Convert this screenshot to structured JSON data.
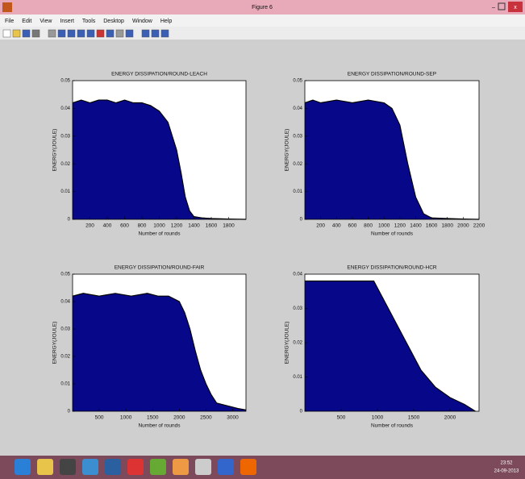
{
  "window": {
    "title": "Figure 6",
    "menu": [
      "File",
      "Edit",
      "View",
      "Insert",
      "Tools",
      "Desktop",
      "Window",
      "Help"
    ]
  },
  "taskbar": {
    "time": "23:52",
    "date": "24-09-2013"
  },
  "chart_data": [
    {
      "type": "area",
      "title": "ENERGY DISSIPATION/ROUND-LEACH",
      "xlabel": "Number of rounds",
      "ylabel": "ENERGY(JOULE)",
      "color": "#07078a",
      "x": [
        0,
        100,
        200,
        300,
        400,
        500,
        600,
        700,
        800,
        900,
        1000,
        1100,
        1200,
        1250,
        1300,
        1350,
        1400,
        1500,
        1600,
        1800,
        2000
      ],
      "values": [
        0.042,
        0.043,
        0.042,
        0.043,
        0.043,
        0.042,
        0.043,
        0.042,
        0.042,
        0.041,
        0.039,
        0.035,
        0.025,
        0.017,
        0.008,
        0.003,
        0.001,
        0.0005,
        0.0003,
        0.0001,
        0
      ],
      "xlim": [
        0,
        2000
      ],
      "ylim": [
        0,
        0.05
      ],
      "xticks": [
        200,
        400,
        600,
        800,
        1000,
        1200,
        1400,
        1600,
        1800
      ],
      "yticks": [
        0,
        0.01,
        0.02,
        0.03,
        0.04,
        0.05
      ]
    },
    {
      "type": "area",
      "title": "ENERGY DISSIPATION/ROUND-SEP",
      "xlabel": "Number of rounds",
      "ylabel": "ENERGY(JOULE)",
      "color": "#07078a",
      "x": [
        0,
        100,
        200,
        400,
        600,
        800,
        1000,
        1100,
        1200,
        1300,
        1400,
        1500,
        1600,
        1800,
        2000,
        2200
      ],
      "values": [
        0.042,
        0.043,
        0.042,
        0.043,
        0.042,
        0.043,
        0.042,
        0.04,
        0.034,
        0.02,
        0.008,
        0.002,
        0.0005,
        0.0003,
        0.0001,
        0
      ],
      "xlim": [
        0,
        2200
      ],
      "ylim": [
        0,
        0.05
      ],
      "xticks": [
        200,
        400,
        600,
        800,
        1000,
        1200,
        1400,
        1600,
        1800,
        2000,
        2200
      ],
      "yticks": [
        0,
        0.01,
        0.02,
        0.03,
        0.04,
        0.05
      ]
    },
    {
      "type": "area",
      "title": "ENERGY DISSIPATION/ROUND-FAIR",
      "xlabel": "Number of rounds",
      "ylabel": "ENERGY(JOULE)",
      "color": "#07078a",
      "x": [
        0,
        200,
        500,
        800,
        1100,
        1400,
        1600,
        1800,
        2000,
        2100,
        2200,
        2300,
        2400,
        2500,
        2600,
        2700,
        2900,
        3100,
        3250
      ],
      "values": [
        0.042,
        0.043,
        0.042,
        0.043,
        0.042,
        0.043,
        0.042,
        0.042,
        0.04,
        0.036,
        0.03,
        0.022,
        0.015,
        0.01,
        0.006,
        0.003,
        0.002,
        0.001,
        0.0005
      ],
      "xlim": [
        0,
        3250
      ],
      "ylim": [
        0,
        0.05
      ],
      "xticks": [
        500,
        1000,
        1500,
        2000,
        2500,
        3000
      ],
      "yticks": [
        0,
        0.01,
        0.02,
        0.03,
        0.04,
        0.05
      ]
    },
    {
      "type": "area",
      "title": "ENERGY DISSIPATION/ROUND-HCR",
      "xlabel": "Number of rounds",
      "ylabel": "ENERGY(JOULE)",
      "color": "#07078a",
      "x": [
        0,
        200,
        400,
        600,
        800,
        950,
        1000,
        1200,
        1400,
        1600,
        1800,
        2000,
        2200,
        2350
      ],
      "values": [
        0.038,
        0.038,
        0.038,
        0.038,
        0.038,
        0.038,
        0.036,
        0.028,
        0.02,
        0.012,
        0.007,
        0.004,
        0.002,
        0
      ],
      "xlim": [
        0,
        2400
      ],
      "ylim": [
        0,
        0.04
      ],
      "xticks": [
        500,
        1000,
        1500,
        2000
      ],
      "yticks": [
        0,
        0.01,
        0.02,
        0.03,
        0.04
      ]
    }
  ]
}
